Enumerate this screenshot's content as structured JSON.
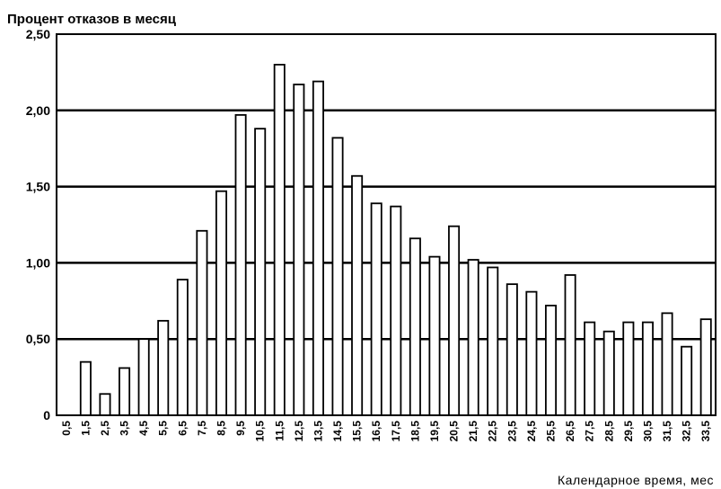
{
  "chart_data": {
    "type": "bar",
    "title": "Процент отказов в месяц",
    "xlabel": "Календарное время, мес",
    "ylabel": "",
    "ylim": [
      0,
      2.5
    ],
    "yticks": [
      "0",
      "0,50",
      "1,00",
      "1,50",
      "2,00",
      "2,50"
    ],
    "ytick_values": [
      0,
      0.5,
      1.0,
      1.5,
      2.0,
      2.5
    ],
    "grid": "horizontal",
    "categories": [
      "0,5",
      "1,5",
      "2,5",
      "3,5",
      "4,5",
      "5,5",
      "6,5",
      "7,5",
      "8,5",
      "9,5",
      "10,5",
      "11,5",
      "12,5",
      "13,5",
      "14,5",
      "15,5",
      "16,5",
      "17,5",
      "18,5",
      "19,5",
      "20,5",
      "21,5",
      "22,5",
      "23,5",
      "24,5",
      "25,5",
      "26,5",
      "27,5",
      "28,5",
      "29,5",
      "30,5",
      "31,5",
      "32,5",
      "33,5"
    ],
    "values": [
      0,
      0.35,
      0.14,
      0.31,
      0.5,
      0.62,
      0.89,
      1.21,
      1.47,
      1.97,
      1.88,
      2.3,
      2.17,
      2.19,
      1.82,
      1.57,
      1.39,
      1.37,
      1.16,
      1.04,
      1.24,
      1.02,
      0.97,
      0.86,
      0.81,
      0.72,
      0.92,
      0.61,
      0.55,
      0.61,
      0.61,
      0.67,
      0.45,
      0.63
    ]
  }
}
